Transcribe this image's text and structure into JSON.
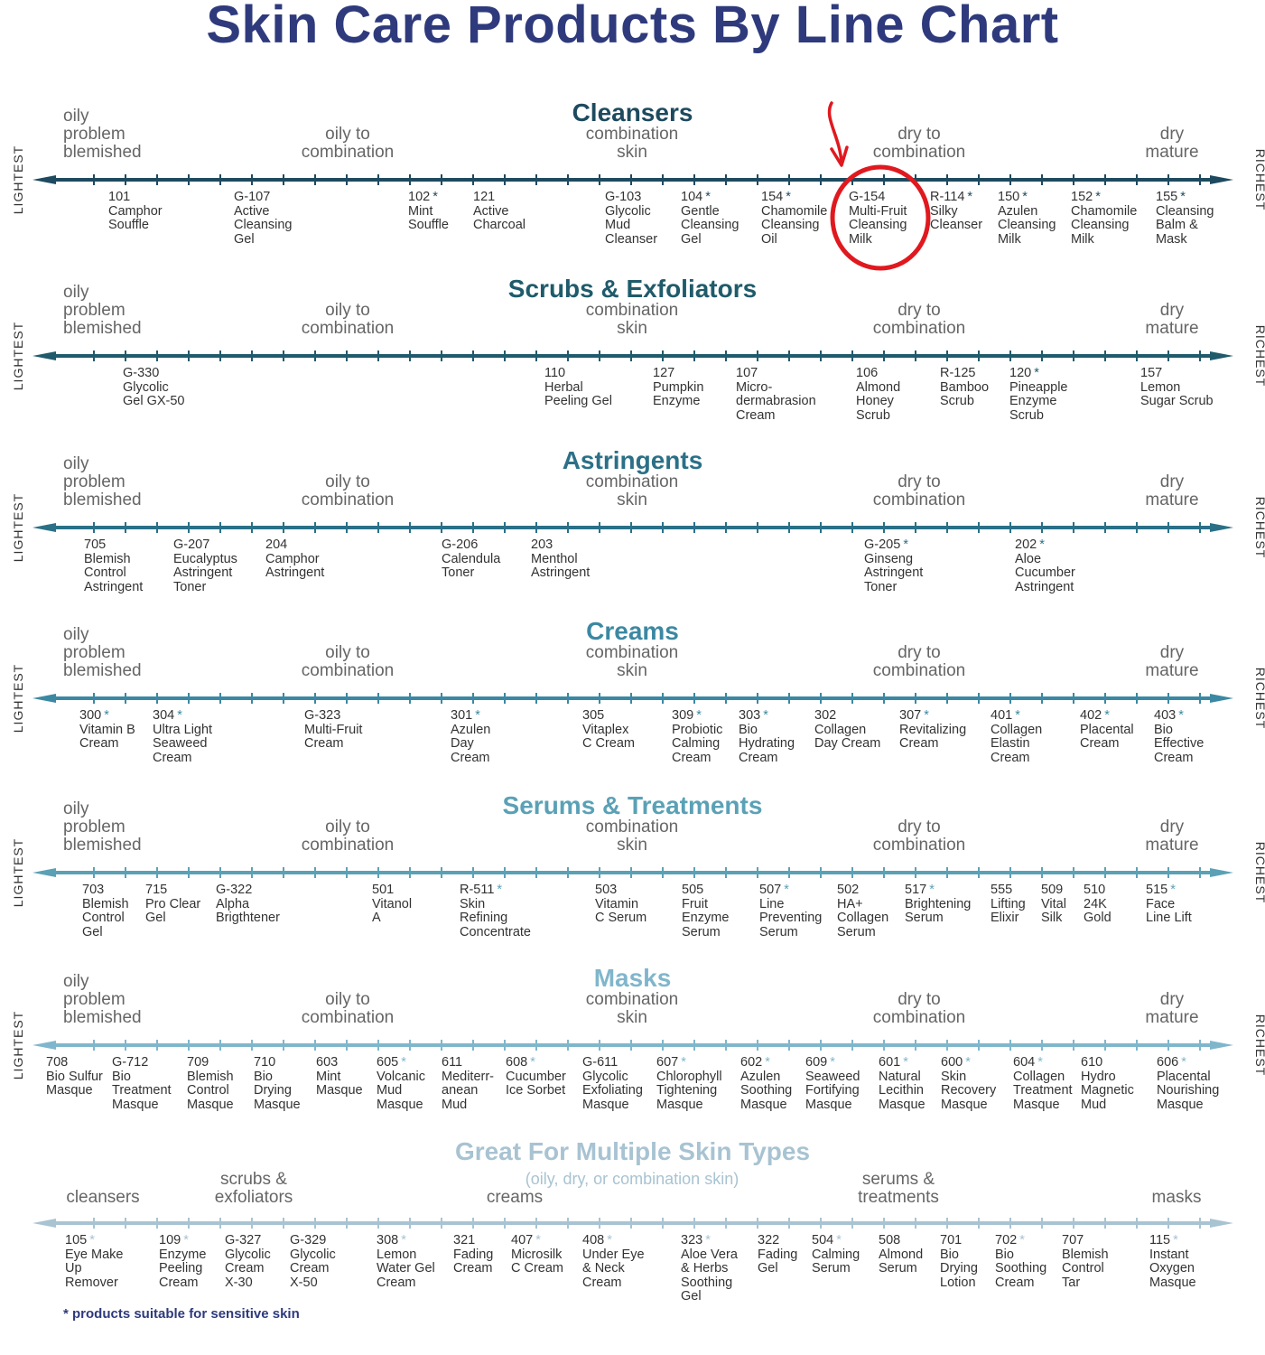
{
  "title": "Skin Care Products By Line Chart",
  "axis_ends": {
    "left": "LIGHTEST",
    "right": "RICHEST"
  },
  "standard_labels": [
    "oily\nproblem\nblemished",
    "oily to\ncombination",
    "combination\nskin",
    "dry to\ncombination",
    "dry\nmature"
  ],
  "sections": [
    {
      "title": "Cleansers",
      "color": "#1d4a5e",
      "products": [
        {
          "code": "101",
          "star": false,
          "name": "Camphor\nSouffle"
        },
        {
          "code": "G-107",
          "star": false,
          "name": "Active\nCleansing\nGel"
        },
        {
          "code": "102",
          "star": true,
          "name": "Mint\nSouffle"
        },
        {
          "code": "121",
          "star": false,
          "name": "Active\nCharcoal"
        },
        {
          "code": "G-103",
          "star": false,
          "name": "Glycolic\nMud\nCleanser"
        },
        {
          "code": "104",
          "star": true,
          "name": "Gentle\nCleansing\nGel"
        },
        {
          "code": "154",
          "star": true,
          "name": "Chamomile\nCleansing\nOil"
        },
        {
          "code": "G-154",
          "star": false,
          "name": "Multi-Fruit\nCleansing\nMilk"
        },
        {
          "code": "R-114",
          "star": true,
          "name": "Silky\nCleanser"
        },
        {
          "code": "150",
          "star": true,
          "name": "Azulen\nCleansing\nMilk"
        },
        {
          "code": "152",
          "star": true,
          "name": "Chamomile\nCleansing\nMilk"
        },
        {
          "code": "155",
          "star": true,
          "name": "Cleansing\nBalm &\nMask"
        }
      ]
    },
    {
      "title": "Scrubs & Exfoliators",
      "color": "#1f5b6b",
      "products": [
        {
          "code": "G-330",
          "star": false,
          "name": "Glycolic\nGel GX-50"
        },
        {
          "code": "110",
          "star": false,
          "name": "Herbal\nPeeling Gel"
        },
        {
          "code": "127",
          "star": false,
          "name": "Pumpkin\nEnzyme"
        },
        {
          "code": "107",
          "star": false,
          "name": "Micro-\ndermabrasion\nCream"
        },
        {
          "code": "106",
          "star": false,
          "name": "Almond\nHoney\nScrub"
        },
        {
          "code": "R-125",
          "star": false,
          "name": "Bamboo\nScrub"
        },
        {
          "code": "120",
          "star": true,
          "name": "Pineapple\nEnzyme\nScrub"
        },
        {
          "code": "157",
          "star": false,
          "name": "Lemon\nSugar Scrub"
        }
      ]
    },
    {
      "title": "Astringents",
      "color": "#2b7087",
      "products": [
        {
          "code": "705",
          "star": false,
          "name": "Blemish\nControl\nAstringent"
        },
        {
          "code": "G-207",
          "star": false,
          "name": "Eucalyptus\nAstringent\nToner"
        },
        {
          "code": "204",
          "star": false,
          "name": "Camphor\nAstringent"
        },
        {
          "code": "G-206",
          "star": false,
          "name": "Calendula\nToner"
        },
        {
          "code": "203",
          "star": false,
          "name": "Menthol\nAstringent"
        },
        {
          "code": "G-205",
          "star": true,
          "name": "Ginseng\nAstringent\nToner"
        },
        {
          "code": "202",
          "star": true,
          "name": "Aloe\nCucumber\nAstringent"
        }
      ]
    },
    {
      "title": "Creams",
      "color": "#3c88a2",
      "products": [
        {
          "code": "300",
          "star": true,
          "name": "Vitamin B\nCream"
        },
        {
          "code": "304",
          "star": true,
          "name": "Ultra Light\nSeaweed\nCream"
        },
        {
          "code": "G-323",
          "star": false,
          "name": "Multi-Fruit\nCream"
        },
        {
          "code": "301",
          "star": true,
          "name": "Azulen\nDay\nCream"
        },
        {
          "code": "305",
          "star": false,
          "name": "Vitaplex\nC Cream"
        },
        {
          "code": "309",
          "star": true,
          "name": "Probiotic\nCalming\nCream"
        },
        {
          "code": "303",
          "star": true,
          "name": "Bio\nHydrating\nCream"
        },
        {
          "code": "302",
          "star": false,
          "name": "Collagen\nDay Cream"
        },
        {
          "code": "307",
          "star": true,
          "name": "Revitalizing\nCream"
        },
        {
          "code": "401",
          "star": true,
          "name": "Collagen\nElastin\nCream"
        },
        {
          "code": "402",
          "star": true,
          "name": "Placental\nCream"
        },
        {
          "code": "403",
          "star": true,
          "name": "Bio\nEffective\nCream"
        }
      ]
    },
    {
      "title": "Serums & Treatments",
      "color": "#5ba1b6",
      "products": [
        {
          "code": "703",
          "star": false,
          "name": "Blemish\nControl\nGel"
        },
        {
          "code": "715",
          "star": false,
          "name": "Pro Clear\nGel"
        },
        {
          "code": "G-322",
          "star": false,
          "name": "Alpha\nBrigthtener"
        },
        {
          "code": "501",
          "star": false,
          "name": "Vitanol\nA"
        },
        {
          "code": "R-511",
          "star": true,
          "name": "Skin\nRefining\nConcentrate"
        },
        {
          "code": "503",
          "star": false,
          "name": "Vitamin\nC Serum"
        },
        {
          "code": "505",
          "star": false,
          "name": "Fruit\nEnzyme\nSerum"
        },
        {
          "code": "507",
          "star": true,
          "name": "Line\nPreventing\nSerum"
        },
        {
          "code": "502",
          "star": false,
          "name": "HA+\nCollagen\nSerum"
        },
        {
          "code": "517",
          "star": true,
          "name": "Brightening\nSerum"
        },
        {
          "code": "555",
          "star": false,
          "name": "Lifting\nElixir"
        },
        {
          "code": "509",
          "star": false,
          "name": "Vital\nSilk"
        },
        {
          "code": "510",
          "star": false,
          "name": "24K\nGold"
        },
        {
          "code": "515",
          "star": true,
          "name": "Face\nLine Lift"
        }
      ]
    },
    {
      "title": "Masks",
      "color": "#80b6cc",
      "products": [
        {
          "code": "708",
          "star": false,
          "name": "Bio Sulfur\nMasque"
        },
        {
          "code": "G-712",
          "star": false,
          "name": "Bio\nTreatment\nMasque"
        },
        {
          "code": "709",
          "star": false,
          "name": "Blemish\nControl\nMasque"
        },
        {
          "code": "710",
          "star": false,
          "name": "Bio\nDrying\nMasque"
        },
        {
          "code": "603",
          "star": false,
          "name": "Mint\nMasque"
        },
        {
          "code": "605",
          "star": true,
          "name": "Volcanic\nMud\nMasque"
        },
        {
          "code": "611",
          "star": false,
          "name": "Mediterr-\nanean\nMud"
        },
        {
          "code": "608",
          "star": true,
          "name": "Cucumber\nIce Sorbet"
        },
        {
          "code": "G-611",
          "star": false,
          "name": "Glycolic\nExfoliating\nMasque"
        },
        {
          "code": "607",
          "star": true,
          "name": "Chlorophyll\nTightening\nMasque"
        },
        {
          "code": "602",
          "star": true,
          "name": "Azulen\nSoothing\nMasque"
        },
        {
          "code": "609",
          "star": true,
          "name": "Seaweed\nFortifying\nMasque"
        },
        {
          "code": "601",
          "star": true,
          "name": "Natural\nLecithin\nMasque"
        },
        {
          "code": "600",
          "star": true,
          "name": "Skin\nRecovery\nMasque"
        },
        {
          "code": "604",
          "star": true,
          "name": "Collagen\nTreatment\nMasque"
        },
        {
          "code": "610",
          "star": false,
          "name": "Hydro\nMagnetic\nMud"
        },
        {
          "code": "606",
          "star": true,
          "name": "Placental\nNourishing\nMasque"
        }
      ]
    }
  ],
  "multiple": {
    "title": "Great For Multiple Skin Types",
    "subtitle": "(oily, dry, or combination skin)",
    "color": "#a8c3d2",
    "labels": [
      "cleansers",
      "scrubs &\nexfoliators",
      "creams",
      "serums &\ntreatments",
      "masks"
    ],
    "products": [
      {
        "code": "105",
        "star": true,
        "name": "Eye Make\nUp\nRemover"
      },
      {
        "code": "109",
        "star": true,
        "name": "Enzyme\nPeeling\nCream"
      },
      {
        "code": "G-327",
        "star": false,
        "name": "Glycolic\nCream\nX-30"
      },
      {
        "code": "G-329",
        "star": false,
        "name": "Glycolic\nCream\nX-50"
      },
      {
        "code": "308",
        "star": true,
        "name": "Lemon\nWater Gel\nCream"
      },
      {
        "code": "321",
        "star": false,
        "name": "Fading\nCream"
      },
      {
        "code": "407",
        "star": true,
        "name": "Microsilk\nC Cream"
      },
      {
        "code": "408",
        "star": true,
        "name": "Under Eye\n& Neck\nCream"
      },
      {
        "code": "323",
        "star": true,
        "name": "Aloe Vera\n& Herbs\nSoothing\nGel"
      },
      {
        "code": "322",
        "star": false,
        "name": "Fading\nGel"
      },
      {
        "code": "504",
        "star": true,
        "name": "Calming\nSerum"
      },
      {
        "code": "508",
        "star": false,
        "name": "Almond\nSerum"
      },
      {
        "code": "701",
        "star": false,
        "name": "Bio\nDrying\nLotion"
      },
      {
        "code": "702",
        "star": true,
        "name": "Bio\nSoothing\nCream"
      },
      {
        "code": "707",
        "star": false,
        "name": "Blemish\nControl\nTar"
      },
      {
        "code": "115",
        "star": true,
        "name": "Instant\nOxygen\nMasque"
      }
    ]
  },
  "star_symbol": "*",
  "footnote": "* products suitable for sensitive skin",
  "highlight": {
    "product": "G-154",
    "color": "#e0191f",
    "icons": [
      "arrow-down-icon",
      "circle-highlight-icon"
    ]
  }
}
